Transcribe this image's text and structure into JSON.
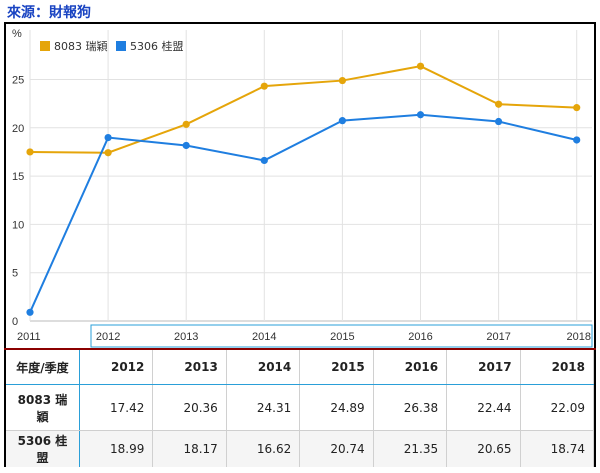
{
  "source_label": "來源：財報狗",
  "chart_data": {
    "type": "line",
    "ylabel": "%",
    "ylim": [
      0,
      30
    ],
    "yticks": [
      0,
      5,
      10,
      15,
      20,
      25
    ],
    "categories": [
      "2011",
      "2012",
      "2013",
      "2014",
      "2015",
      "2016",
      "2017",
      "2018"
    ],
    "series": [
      {
        "name": "8083 瑞穎",
        "color": "#e5a50a",
        "values": [
          17.5,
          17.42,
          20.36,
          24.31,
          24.89,
          26.38,
          22.44,
          22.09
        ]
      },
      {
        "name": "5306 桂盟",
        "color": "#1f7ee0",
        "values": [
          0.9,
          18.99,
          18.17,
          16.62,
          20.74,
          21.35,
          20.65,
          18.74
        ]
      }
    ],
    "grid": true,
    "legend_position": "top-left"
  },
  "table": {
    "header_label": "年度/季度",
    "years": [
      "2012",
      "2013",
      "2014",
      "2015",
      "2016",
      "2017",
      "2018"
    ],
    "rows": [
      {
        "label": "8083 瑞穎",
        "values": [
          "17.42",
          "20.36",
          "24.31",
          "24.89",
          "26.38",
          "22.44",
          "22.09"
        ]
      },
      {
        "label": "5306 桂盟",
        "values": [
          "18.99",
          "18.17",
          "16.62",
          "20.74",
          "21.35",
          "20.65",
          "18.74"
        ]
      }
    ]
  }
}
